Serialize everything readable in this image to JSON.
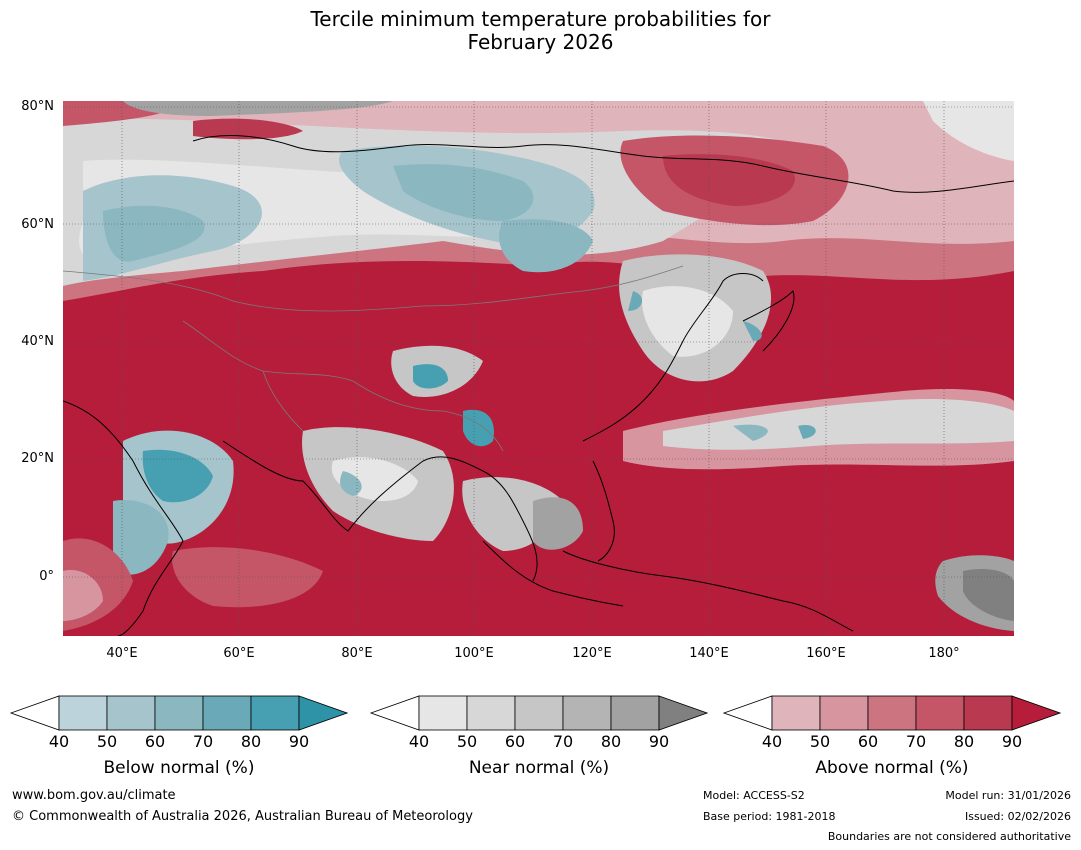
{
  "title": {
    "line1": "Tercile minimum temperature probabilities for",
    "line2": "February 2026"
  },
  "map": {
    "lat_labels": [
      "80°N",
      "60°N",
      "40°N",
      "20°N",
      "0°"
    ],
    "lon_labels": [
      "40°E",
      "60°E",
      "80°E",
      "100°E",
      "120°E",
      "140°E",
      "160°E",
      "180°"
    ],
    "colors": {
      "below": [
        "#bdd3db",
        "#a5c4cc",
        "#8bb7c1",
        "#6aaab8",
        "#46a0b1",
        "#2f93a8"
      ],
      "near": [
        "#e6e6e6",
        "#d7d7d7",
        "#c6c6c6",
        "#b4b4b4",
        "#a2a2a2",
        "#808080"
      ],
      "above": [
        "#dfb4bb",
        "#d6959f",
        "#cc7581",
        "#c45668",
        "#b93a50",
        "#b51d3a"
      ]
    }
  },
  "legend": {
    "below": {
      "label": "Below normal (%)",
      "ticks": [
        "40",
        "50",
        "60",
        "70",
        "80",
        "90"
      ]
    },
    "near": {
      "label": "Near normal (%)",
      "ticks": [
        "40",
        "50",
        "60",
        "70",
        "80",
        "90"
      ]
    },
    "above": {
      "label": "Above normal (%)",
      "ticks": [
        "40",
        "50",
        "60",
        "70",
        "80",
        "90"
      ]
    }
  },
  "footer": {
    "website": "www.bom.gov.au/climate",
    "copyright": "© Commonwealth of Australia 2026, Australian Bureau of Meteorology",
    "model": "Model: ACCESS-S2",
    "base_period": "Base period: 1981-2018",
    "model_run": "Model run: 31/01/2026",
    "issued": "Issued: 02/02/2026",
    "disclaimer": "Boundaries are not considered authoritative"
  }
}
